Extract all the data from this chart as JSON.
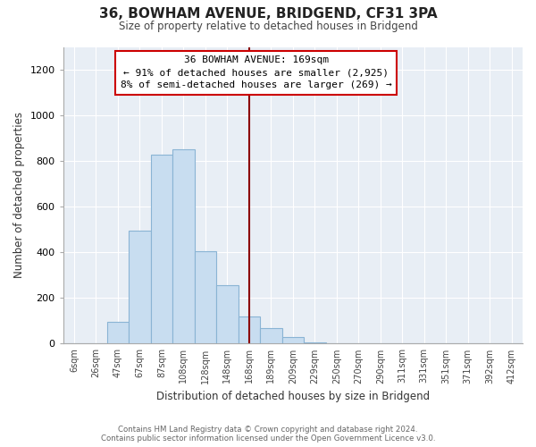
{
  "title": "36, BOWHAM AVENUE, BRIDGEND, CF31 3PA",
  "subtitle": "Size of property relative to detached houses in Bridgend",
  "xlabel": "Distribution of detached houses by size in Bridgend",
  "ylabel": "Number of detached properties",
  "bar_labels": [
    "6sqm",
    "26sqm",
    "47sqm",
    "67sqm",
    "87sqm",
    "108sqm",
    "128sqm",
    "148sqm",
    "168sqm",
    "189sqm",
    "209sqm",
    "229sqm",
    "250sqm",
    "270sqm",
    "290sqm",
    "311sqm",
    "331sqm",
    "351sqm",
    "371sqm",
    "392sqm",
    "412sqm"
  ],
  "bar_heights": [
    0,
    0,
    95,
    495,
    830,
    852,
    405,
    258,
    120,
    68,
    30,
    5,
    0,
    0,
    0,
    0,
    0,
    0,
    0,
    0,
    0
  ],
  "bar_color": "#c8ddf0",
  "bar_edge_color": "#8ab4d4",
  "vline_index": 8,
  "vline_color": "#8b0000",
  "annotation_title": "36 BOWHAM AVENUE: 169sqm",
  "annotation_line1": "← 91% of detached houses are smaller (2,925)",
  "annotation_line2": "8% of semi-detached houses are larger (269) →",
  "annotation_box_facecolor": "#ffffff",
  "annotation_box_edgecolor": "#cc0000",
  "ylim": [
    0,
    1300
  ],
  "yticks": [
    0,
    200,
    400,
    600,
    800,
    1000,
    1200
  ],
  "footnote1": "Contains HM Land Registry data © Crown copyright and database right 2024.",
  "footnote2": "Contains public sector information licensed under the Open Government Licence v3.0.",
  "bg_color": "#ffffff",
  "plot_bg_color": "#e8eef5",
  "grid_color": "#ffffff"
}
